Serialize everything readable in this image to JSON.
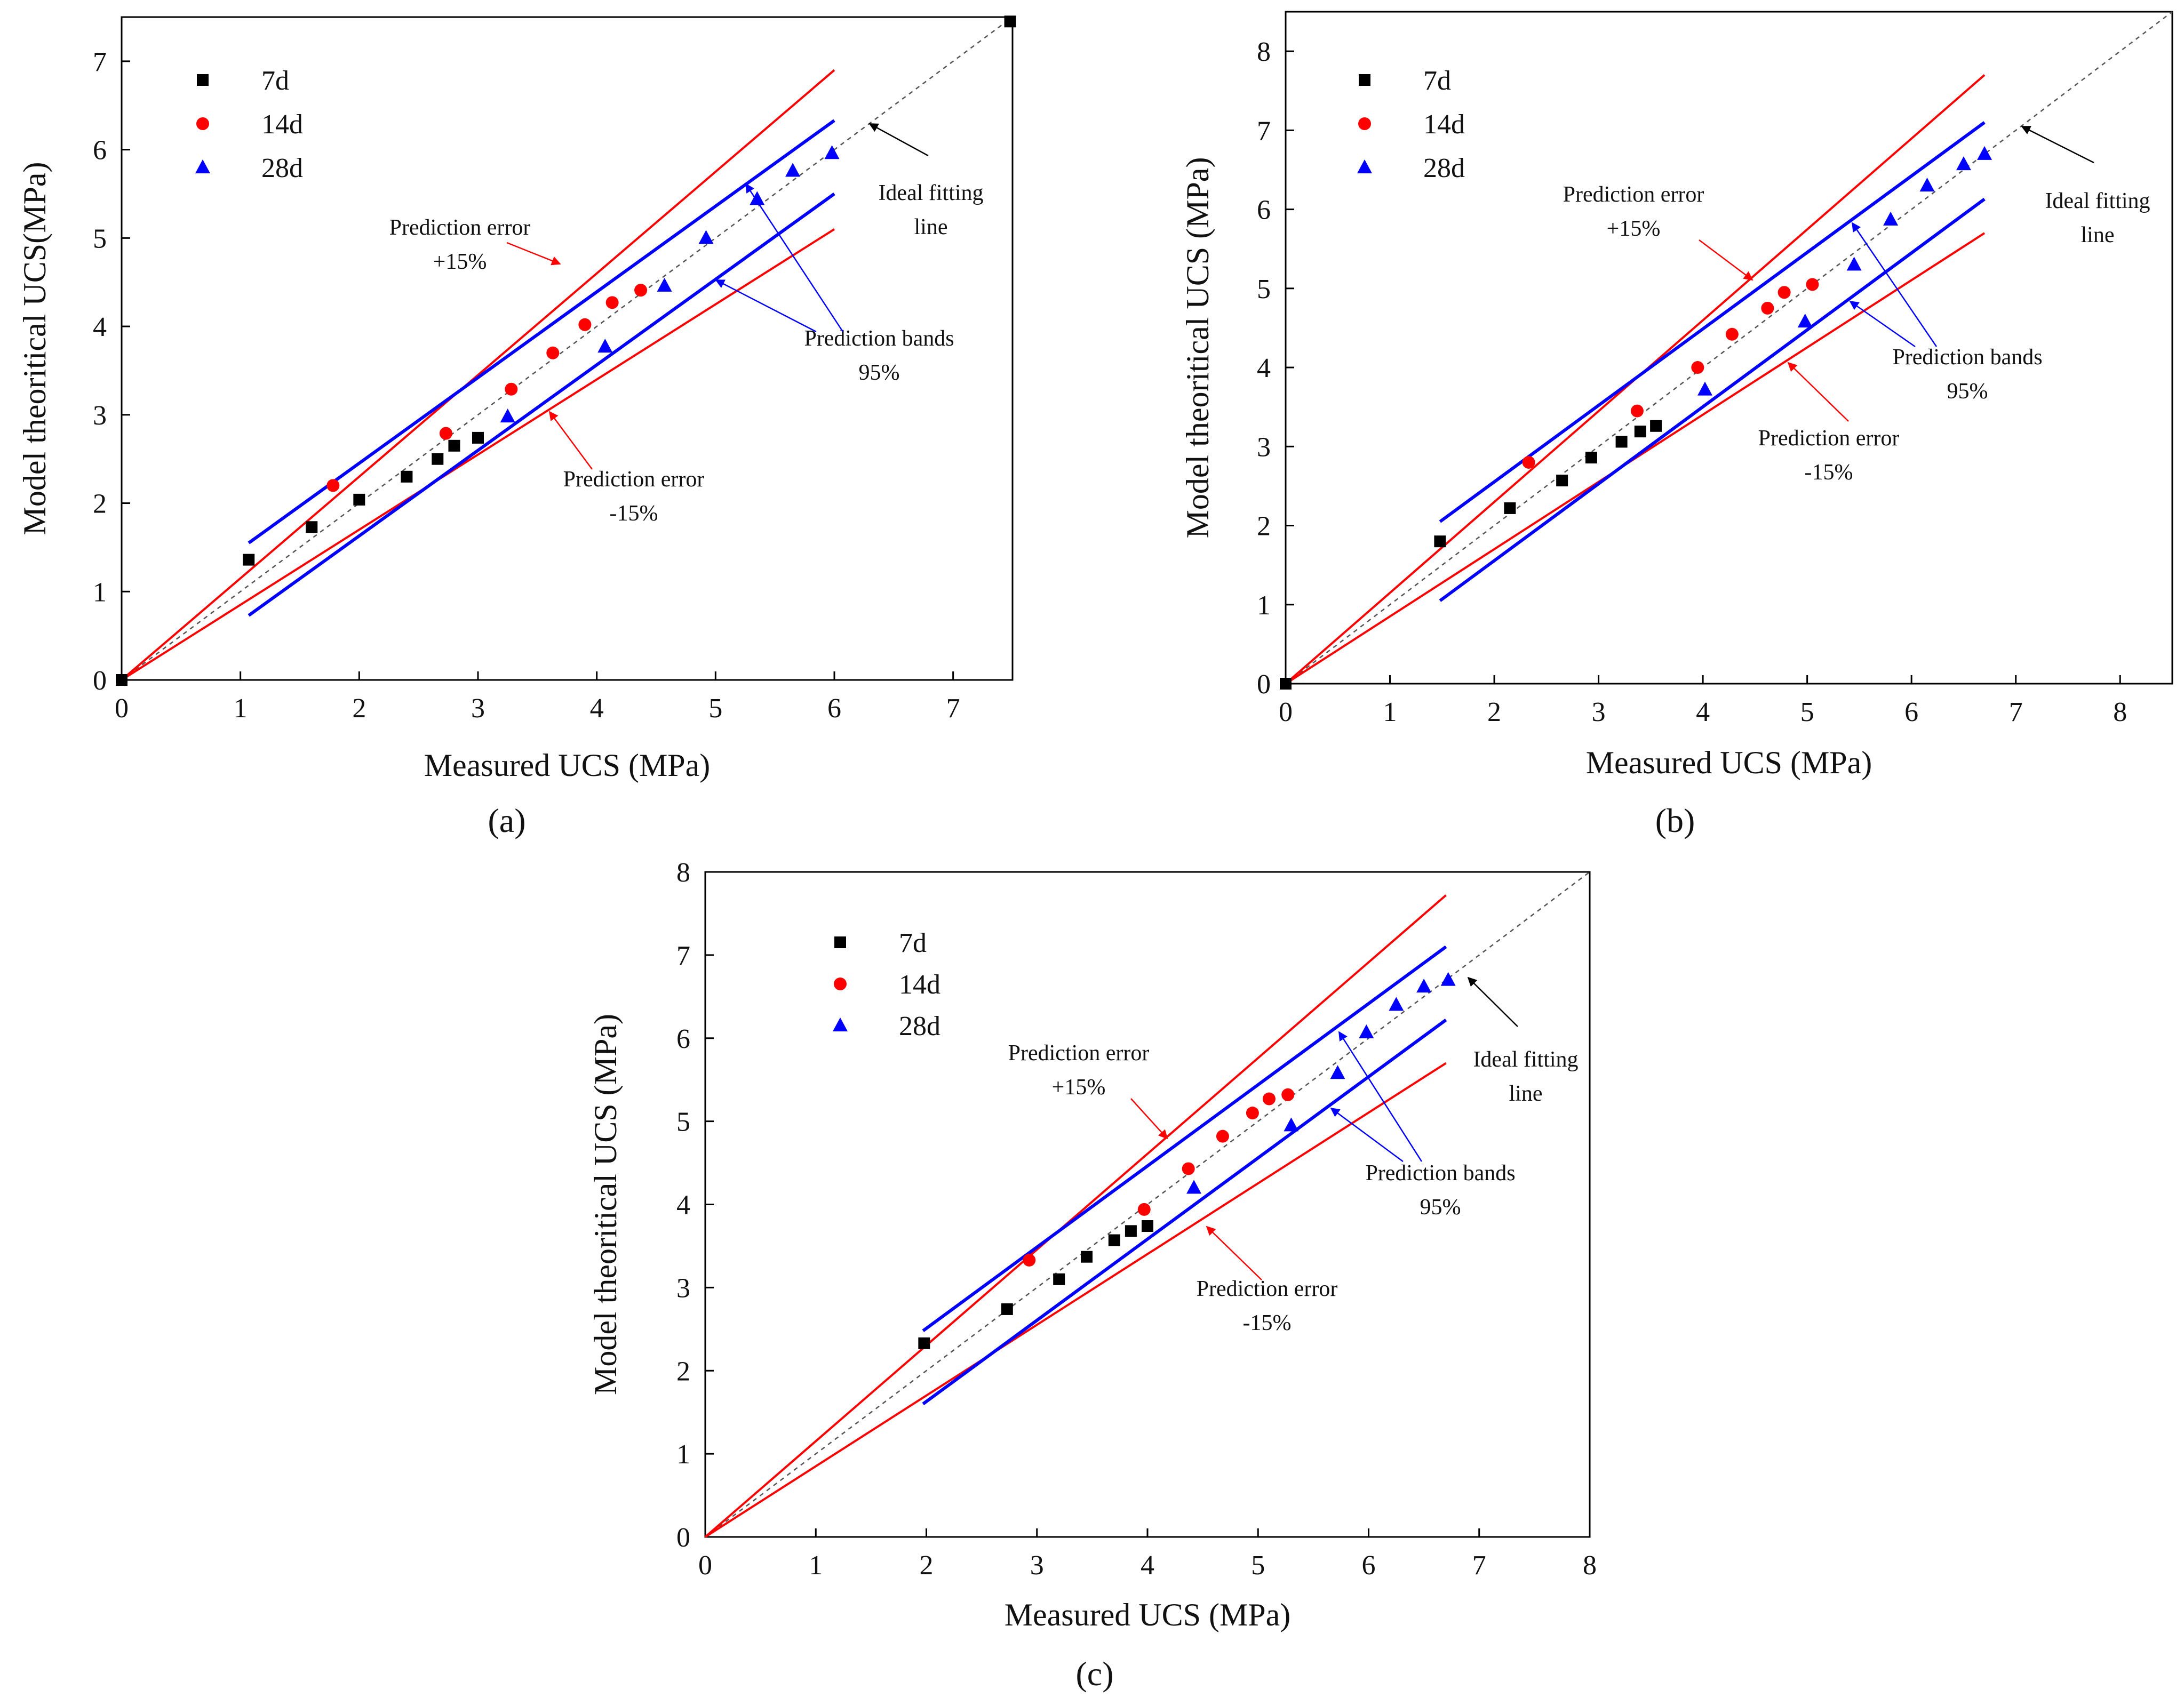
{
  "chart_data": [
    {
      "type": "scatter",
      "panel": "a",
      "caption": "(a)",
      "xlabel": "Measured UCS (MPa)",
      "ylabel": "Model theoritical UCS(MPa)",
      "xlim": [
        0,
        7.5
      ],
      "ylim": [
        0,
        7.5
      ],
      "xticks": [
        "0",
        "1",
        "2",
        "3",
        "4",
        "5",
        "6",
        "7"
      ],
      "yticks": [
        "0",
        "1",
        "2",
        "3",
        "4",
        "5",
        "6",
        "7"
      ],
      "series": [
        {
          "name": "7d",
          "marker": "square",
          "color": "#000000",
          "x": [
            0,
            1.07,
            1.6,
            2.0,
            2.4,
            2.66,
            2.8,
            3.0,
            7.48
          ],
          "y": [
            0,
            1.36,
            1.73,
            2.04,
            2.3,
            2.5,
            2.65,
            2.74,
            7.45
          ]
        },
        {
          "name": "14d",
          "marker": "circle",
          "color": "#ff0000",
          "x": [
            1.78,
            2.73,
            3.28,
            3.63,
            3.9,
            4.13,
            4.37
          ],
          "y": [
            2.2,
            2.79,
            3.29,
            3.7,
            4.02,
            4.27,
            4.41
          ]
        },
        {
          "name": "28d",
          "marker": "triangle",
          "color": "#0000ff",
          "x": [
            3.25,
            4.07,
            4.57,
            4.92,
            5.35,
            5.65,
            5.98
          ],
          "y": [
            2.98,
            3.77,
            4.46,
            5.0,
            5.44,
            5.76,
            5.96
          ]
        }
      ],
      "lines": {
        "ideal": [
          [
            0,
            0
          ],
          [
            7.5,
            7.5
          ]
        ],
        "upper_error": [
          [
            0,
            0
          ],
          [
            6.0,
            6.9
          ]
        ],
        "lower_error": [
          [
            0,
            0
          ],
          [
            6.0,
            5.1
          ]
        ],
        "upper_band": [
          [
            1.07,
            1.55
          ],
          [
            6.0,
            6.33
          ]
        ],
        "lower_band": [
          [
            1.07,
            0.73
          ],
          [
            6.0,
            5.5
          ]
        ]
      },
      "annotations": [
        {
          "id": "ideal",
          "lines": [
            "Ideal fitting",
            "line"
          ]
        },
        {
          "id": "upper_error",
          "lines": [
            "Prediction error",
            "+15%"
          ]
        },
        {
          "id": "bands",
          "lines": [
            "Prediction bands",
            "95%"
          ]
        },
        {
          "id": "lower_error",
          "lines": [
            "Prediction error",
            "-15%"
          ]
        }
      ]
    },
    {
      "type": "scatter",
      "panel": "b",
      "caption": "(b)",
      "xlabel": "Measured UCS (MPa)",
      "ylabel": "Model theoritical UCS (MPa)",
      "xlim": [
        0,
        8.5
      ],
      "ylim": [
        0,
        8.5
      ],
      "xticks": [
        "0",
        "1",
        "2",
        "3",
        "4",
        "5",
        "6",
        "7",
        "8"
      ],
      "yticks": [
        "0",
        "1",
        "2",
        "3",
        "4",
        "5",
        "6",
        "7",
        "8"
      ],
      "series": [
        {
          "name": "7d",
          "marker": "square",
          "color": "#000000",
          "x": [
            0,
            1.48,
            2.15,
            2.65,
            2.93,
            3.22,
            3.4,
            3.55
          ],
          "y": [
            0,
            1.8,
            2.22,
            2.57,
            2.86,
            3.06,
            3.19,
            3.26
          ]
        },
        {
          "name": "14d",
          "marker": "circle",
          "color": "#ff0000",
          "x": [
            2.33,
            3.37,
            3.95,
            4.28,
            4.62,
            4.78,
            5.05
          ],
          "y": [
            2.8,
            3.45,
            4.0,
            4.42,
            4.75,
            4.95,
            5.05
          ]
        },
        {
          "name": "28d",
          "marker": "triangle",
          "color": "#0000ff",
          "x": [
            4.02,
            4.98,
            5.45,
            5.8,
            6.15,
            6.5,
            6.7
          ],
          "y": [
            3.72,
            4.58,
            5.3,
            5.87,
            6.3,
            6.57,
            6.7
          ]
        }
      ],
      "lines": {
        "ideal": [
          [
            0,
            0
          ],
          [
            8.5,
            8.5
          ]
        ],
        "upper_error": [
          [
            0,
            0
          ],
          [
            6.7,
            7.7
          ]
        ],
        "lower_error": [
          [
            0,
            0
          ],
          [
            6.7,
            5.7
          ]
        ],
        "upper_band": [
          [
            1.48,
            2.05
          ],
          [
            6.7,
            7.1
          ]
        ],
        "lower_band": [
          [
            1.48,
            1.05
          ],
          [
            6.7,
            6.13
          ]
        ]
      },
      "annotations": [
        {
          "id": "ideal",
          "lines": [
            "Ideal fitting",
            "line"
          ]
        },
        {
          "id": "upper_error",
          "lines": [
            "Prediction error",
            "+15%"
          ]
        },
        {
          "id": "bands",
          "lines": [
            "Prediction bands",
            "95%"
          ]
        },
        {
          "id": "lower_error",
          "lines": [
            "Prediction error",
            "-15%"
          ]
        }
      ]
    },
    {
      "type": "scatter",
      "panel": "c",
      "caption": "(c)",
      "xlabel": "Measured UCS (MPa)",
      "ylabel": "Model theoritical UCS (MPa)",
      "xlim": [
        0,
        8
      ],
      "ylim": [
        0,
        8
      ],
      "xticks": [
        "0",
        "1",
        "2",
        "3",
        "4",
        "5",
        "6",
        "7",
        "8"
      ],
      "yticks": [
        "0",
        "1",
        "2",
        "3",
        "4",
        "5",
        "6",
        "7",
        "8"
      ],
      "series": [
        {
          "name": "7d",
          "marker": "square",
          "color": "#000000",
          "x": [
            1.98,
            2.73,
            3.2,
            3.45,
            3.7,
            3.85,
            4.0
          ],
          "y": [
            2.33,
            2.74,
            3.1,
            3.37,
            3.57,
            3.68,
            3.74
          ]
        },
        {
          "name": "14d",
          "marker": "circle",
          "color": "#ff0000",
          "x": [
            2.93,
            3.97,
            4.37,
            4.68,
            4.95,
            5.1,
            5.27
          ],
          "y": [
            3.33,
            3.94,
            4.43,
            4.82,
            5.1,
            5.27,
            5.32
          ]
        },
        {
          "name": "28d",
          "marker": "triangle",
          "color": "#0000ff",
          "x": [
            4.42,
            5.3,
            5.72,
            5.98,
            6.25,
            6.5,
            6.72
          ],
          "y": [
            4.2,
            4.95,
            5.58,
            6.07,
            6.4,
            6.62,
            6.7
          ]
        }
      ],
      "lines": {
        "ideal": [
          [
            0,
            0
          ],
          [
            8,
            8
          ]
        ],
        "upper_error": [
          [
            0,
            0
          ],
          [
            6.7,
            7.72
          ]
        ],
        "lower_error": [
          [
            0,
            0
          ],
          [
            6.7,
            5.7
          ]
        ],
        "upper_band": [
          [
            1.97,
            2.48
          ],
          [
            6.7,
            7.1
          ]
        ],
        "lower_band": [
          [
            1.97,
            1.6
          ],
          [
            6.7,
            6.22
          ]
        ]
      },
      "annotations": [
        {
          "id": "ideal",
          "lines": [
            "Ideal fitting",
            "line"
          ]
        },
        {
          "id": "upper_error",
          "lines": [
            "Prediction error",
            "+15%"
          ]
        },
        {
          "id": "bands",
          "lines": [
            "Prediction bands",
            "95%"
          ]
        },
        {
          "id": "lower_error",
          "lines": [
            "Prediction error",
            "-15%"
          ]
        }
      ]
    }
  ]
}
